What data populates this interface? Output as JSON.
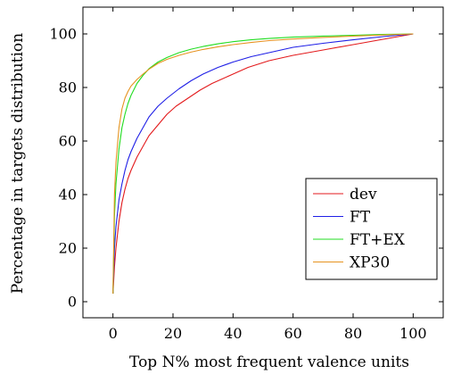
{
  "chart_data": {
    "type": "line",
    "title": "",
    "xlabel": "Top N% most frequent valence units",
    "ylabel": "Percentage in targets distribution",
    "xlim": [
      -10,
      110
    ],
    "ylim": [
      -6,
      110
    ],
    "xticks": [
      0,
      20,
      40,
      60,
      80,
      100
    ],
    "yticks": [
      0,
      20,
      40,
      60,
      80,
      100
    ],
    "grid": false,
    "legend_position": "bottom-right",
    "series": [
      {
        "name": "dev",
        "color": "#e31a1c",
        "x": [
          0,
          0.5,
          1,
          2,
          3,
          4,
          5,
          6,
          8,
          10,
          12,
          15,
          18,
          21,
          25,
          29,
          33,
          36,
          40,
          45,
          52,
          60,
          70,
          80,
          90,
          100
        ],
        "y": [
          3,
          13,
          20,
          30,
          37,
          42,
          46,
          49,
          54,
          58,
          62,
          66,
          70,
          73,
          76,
          79,
          81.5,
          83,
          85,
          87.5,
          90,
          92,
          94,
          96,
          98,
          100
        ]
      },
      {
        "name": "FT",
        "color": "#1f1fe6",
        "x": [
          0,
          0.5,
          1,
          2,
          3,
          4,
          5,
          6,
          8,
          10,
          12,
          15,
          18,
          22,
          26,
          30,
          35,
          40,
          46,
          52,
          60,
          70,
          80,
          90,
          100
        ],
        "y": [
          3,
          20,
          28,
          38,
          44,
          49,
          53,
          56,
          61,
          65,
          69,
          73,
          76,
          79.5,
          82.5,
          85,
          87.5,
          89.5,
          91.5,
          93,
          95,
          96.5,
          97.8,
          99,
          100
        ]
      },
      {
        "name": "FT+EX",
        "color": "#22dd22",
        "x": [
          0,
          0.5,
          1,
          2,
          3,
          4,
          5,
          6,
          8,
          10,
          12,
          15,
          18,
          22,
          26,
          30,
          35,
          40,
          46,
          52,
          60,
          70,
          80,
          90,
          100
        ],
        "y": [
          3,
          32,
          44,
          57,
          65,
          70,
          74,
          77,
          81.5,
          84.5,
          87,
          89.5,
          91.2,
          93,
          94.3,
          95.3,
          96.3,
          97.1,
          97.8,
          98.3,
          98.8,
          99.2,
          99.5,
          99.8,
          100
        ]
      },
      {
        "name": "XP30",
        "color": "#e69320",
        "x": [
          0,
          0.5,
          1,
          2,
          3,
          4,
          5,
          6,
          8,
          10,
          12,
          15,
          18,
          22,
          26,
          30,
          35,
          40,
          46,
          52,
          60,
          70,
          80,
          90,
          100
        ],
        "y": [
          3,
          40,
          52,
          65,
          72,
          76,
          78.5,
          80.5,
          83,
          85,
          86.8,
          89,
          90.5,
          92,
          93.2,
          94.2,
          95.2,
          96,
          96.8,
          97.5,
          98.1,
          98.7,
          99.2,
          99.6,
          100
        ]
      }
    ]
  }
}
